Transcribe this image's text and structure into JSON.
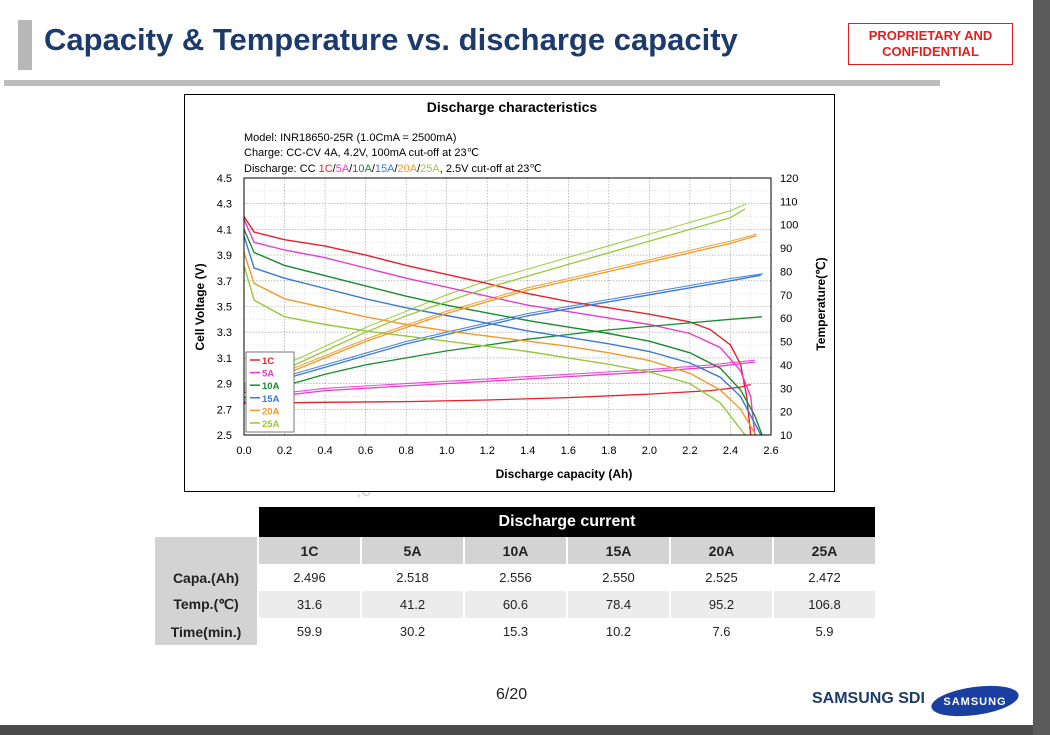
{
  "title": "Capacity & Temperature vs. discharge capacity",
  "confidential": [
    "PROPRIETARY AND",
    "CONFIDENTIAL"
  ],
  "page_number": "6/20",
  "footer_brand": "SAMSUNG SDI",
  "logo_text": "SAMSUNG",
  "watermark": "·om",
  "chart_data": {
    "type": "line",
    "title": "Discharge characteristics",
    "notes": [
      "Model: INR18650-25R (1.0CmA = 2500mA)",
      "Charge: CC-CV 4A, 4.2V, 100mA cut-off at 23℃"
    ],
    "discharge_note": {
      "prefix": "Discharge: CC ",
      "parts": [
        {
          "text": "1C",
          "color": "#e8202a"
        },
        {
          "text": "/",
          "color": "#000000"
        },
        {
          "text": "5A",
          "color": "#e83cd0"
        },
        {
          "text": "/",
          "color": "#000000"
        },
        {
          "text": "10A",
          "color": "#178c2e"
        },
        {
          "text": "/",
          "color": "#000000"
        },
        {
          "text": "15A",
          "color": "#3a78d8"
        },
        {
          "text": "/",
          "color": "#000000"
        },
        {
          "text": "20A",
          "color": "#f09a28"
        },
        {
          "text": "/",
          "color": "#000000"
        },
        {
          "text": "25A",
          "color": "#98c83a"
        }
      ],
      "suffix": ", 2.5V cut-off at 23℃"
    },
    "xlabel": "Discharge capacity (Ah)",
    "ylabel": "Cell Voltage (V)",
    "y2label": "Temperature(℃)",
    "xlim": [
      0,
      2.6
    ],
    "ylim": [
      2.5,
      4.5
    ],
    "y2lim": [
      10,
      120
    ],
    "xticks": [
      "0.0",
      "0.2",
      "0.4",
      "0.6",
      "0.8",
      "1.0",
      "1.2",
      "1.4",
      "1.6",
      "1.8",
      "2.0",
      "2.2",
      "2.4",
      "2.6"
    ],
    "yticks": [
      "2.5",
      "2.7",
      "2.9",
      "3.1",
      "3.3",
      "3.5",
      "3.7",
      "3.9",
      "4.1",
      "4.3",
      "4.5"
    ],
    "y2ticks": [
      "10",
      "20",
      "30",
      "40",
      "50",
      "60",
      "70",
      "80",
      "90",
      "100",
      "110",
      "120"
    ],
    "legend_position": "bottom-left",
    "series": [
      {
        "name": "1C",
        "color": "#e8202a",
        "voltage": [
          [
            0,
            4.2
          ],
          [
            0.05,
            4.08
          ],
          [
            0.2,
            4.02
          ],
          [
            0.4,
            3.97
          ],
          [
            0.6,
            3.9
          ],
          [
            0.8,
            3.82
          ],
          [
            1.0,
            3.75
          ],
          [
            1.2,
            3.68
          ],
          [
            1.4,
            3.6
          ],
          [
            1.6,
            3.54
          ],
          [
            1.8,
            3.49
          ],
          [
            2.0,
            3.44
          ],
          [
            2.2,
            3.38
          ],
          [
            2.3,
            3.32
          ],
          [
            2.4,
            3.2
          ],
          [
            2.45,
            3.05
          ],
          [
            2.48,
            2.8
          ],
          [
            2.5,
            2.5
          ]
        ],
        "temperature": [
          [
            0,
            23.5
          ],
          [
            0.4,
            24
          ],
          [
            0.8,
            24.3
          ],
          [
            1.2,
            25
          ],
          [
            1.6,
            26
          ],
          [
            2.0,
            27.5
          ],
          [
            2.3,
            29
          ],
          [
            2.45,
            30.5
          ],
          [
            2.5,
            31.6
          ]
        ]
      },
      {
        "name": "5A",
        "color": "#e83cd0",
        "voltage": [
          [
            0,
            4.18
          ],
          [
            0.05,
            4.0
          ],
          [
            0.2,
            3.94
          ],
          [
            0.4,
            3.88
          ],
          [
            0.6,
            3.8
          ],
          [
            0.8,
            3.72
          ],
          [
            1.0,
            3.65
          ],
          [
            1.2,
            3.58
          ],
          [
            1.4,
            3.51
          ],
          [
            1.6,
            3.46
          ],
          [
            1.8,
            3.41
          ],
          [
            2.0,
            3.36
          ],
          [
            2.2,
            3.29
          ],
          [
            2.35,
            3.18
          ],
          [
            2.45,
            3.0
          ],
          [
            2.5,
            2.8
          ],
          [
            2.52,
            2.5
          ]
        ],
        "temperature": [
          [
            0,
            24
          ],
          [
            0.2,
            27
          ],
          [
            0.4,
            29
          ],
          [
            0.8,
            31
          ],
          [
            1.2,
            33
          ],
          [
            1.6,
            35
          ],
          [
            2.0,
            37
          ],
          [
            2.3,
            39
          ],
          [
            2.52,
            41.2
          ]
        ]
      },
      {
        "name": "10A",
        "color": "#178c2e",
        "voltage": [
          [
            0,
            4.1
          ],
          [
            0.05,
            3.92
          ],
          [
            0.2,
            3.82
          ],
          [
            0.4,
            3.74
          ],
          [
            0.6,
            3.66
          ],
          [
            0.8,
            3.58
          ],
          [
            1.0,
            3.51
          ],
          [
            1.2,
            3.45
          ],
          [
            1.4,
            3.39
          ],
          [
            1.6,
            3.34
          ],
          [
            1.8,
            3.29
          ],
          [
            2.0,
            3.23
          ],
          [
            2.2,
            3.14
          ],
          [
            2.35,
            3.02
          ],
          [
            2.45,
            2.85
          ],
          [
            2.52,
            2.65
          ],
          [
            2.556,
            2.5
          ]
        ],
        "temperature": [
          [
            0,
            26
          ],
          [
            0.2,
            31
          ],
          [
            0.4,
            36
          ],
          [
            0.6,
            40
          ],
          [
            0.8,
            43
          ],
          [
            1.0,
            46
          ],
          [
            1.2,
            48.5
          ],
          [
            1.4,
            51
          ],
          [
            1.6,
            53
          ],
          [
            1.8,
            55
          ],
          [
            2.0,
            56.5
          ],
          [
            2.2,
            58
          ],
          [
            2.4,
            59.5
          ],
          [
            2.556,
            60.6
          ]
        ]
      },
      {
        "name": "15A",
        "color": "#3a78d8",
        "voltage": [
          [
            0,
            4.05
          ],
          [
            0.05,
            3.8
          ],
          [
            0.2,
            3.72
          ],
          [
            0.4,
            3.64
          ],
          [
            0.6,
            3.56
          ],
          [
            0.8,
            3.49
          ],
          [
            1.0,
            3.43
          ],
          [
            1.2,
            3.37
          ],
          [
            1.4,
            3.31
          ],
          [
            1.6,
            3.26
          ],
          [
            1.8,
            3.21
          ],
          [
            2.0,
            3.15
          ],
          [
            2.2,
            3.06
          ],
          [
            2.35,
            2.95
          ],
          [
            2.45,
            2.8
          ],
          [
            2.55,
            2.5
          ]
        ],
        "temperature": [
          [
            0,
            28
          ],
          [
            0.2,
            34
          ],
          [
            0.4,
            39
          ],
          [
            0.6,
            44
          ],
          [
            0.8,
            49
          ],
          [
            1.0,
            53
          ],
          [
            1.2,
            57
          ],
          [
            1.4,
            61
          ],
          [
            1.6,
            64
          ],
          [
            1.8,
            67
          ],
          [
            2.0,
            70
          ],
          [
            2.2,
            73
          ],
          [
            2.4,
            76
          ],
          [
            2.55,
            78.4
          ]
        ]
      },
      {
        "name": "20A",
        "color": "#f09a28",
        "voltage": [
          [
            0,
            3.92
          ],
          [
            0.05,
            3.68
          ],
          [
            0.2,
            3.56
          ],
          [
            0.4,
            3.49
          ],
          [
            0.6,
            3.42
          ],
          [
            0.8,
            3.36
          ],
          [
            1.0,
            3.31
          ],
          [
            1.2,
            3.27
          ],
          [
            1.4,
            3.23
          ],
          [
            1.6,
            3.19
          ],
          [
            1.8,
            3.14
          ],
          [
            2.0,
            3.08
          ],
          [
            2.2,
            2.98
          ],
          [
            2.35,
            2.85
          ],
          [
            2.45,
            2.7
          ],
          [
            2.525,
            2.5
          ]
        ],
        "temperature": [
          [
            0,
            29
          ],
          [
            0.2,
            36
          ],
          [
            0.4,
            43
          ],
          [
            0.6,
            50
          ],
          [
            0.8,
            56
          ],
          [
            1.0,
            62
          ],
          [
            1.2,
            67
          ],
          [
            1.4,
            72
          ],
          [
            1.6,
            76
          ],
          [
            1.8,
            80
          ],
          [
            2.0,
            84
          ],
          [
            2.2,
            88
          ],
          [
            2.4,
            92
          ],
          [
            2.525,
            95.2
          ]
        ]
      },
      {
        "name": "25A",
        "color": "#98c83a",
        "voltage": [
          [
            0,
            3.82
          ],
          [
            0.05,
            3.55
          ],
          [
            0.2,
            3.42
          ],
          [
            0.4,
            3.36
          ],
          [
            0.6,
            3.31
          ],
          [
            0.8,
            3.27
          ],
          [
            1.0,
            3.23
          ],
          [
            1.2,
            3.19
          ],
          [
            1.4,
            3.15
          ],
          [
            1.6,
            3.1
          ],
          [
            1.8,
            3.05
          ],
          [
            2.0,
            2.99
          ],
          [
            2.2,
            2.9
          ],
          [
            2.35,
            2.75
          ],
          [
            2.472,
            2.5
          ]
        ],
        "temperature": [
          [
            0,
            30
          ],
          [
            0.2,
            38
          ],
          [
            0.4,
            46
          ],
          [
            0.6,
            54
          ],
          [
            0.8,
            61
          ],
          [
            1.0,
            67
          ],
          [
            1.2,
            73
          ],
          [
            1.4,
            78
          ],
          [
            1.6,
            83
          ],
          [
            1.8,
            88
          ],
          [
            2.0,
            93
          ],
          [
            2.2,
            98
          ],
          [
            2.4,
            103
          ],
          [
            2.472,
            106.8
          ]
        ]
      }
    ],
    "temperature_bands": [
      {
        "color": "#e83cd0",
        "points": [
          [
            0,
            25
          ],
          [
            0.2,
            28
          ],
          [
            0.4,
            30
          ],
          [
            0.8,
            32
          ],
          [
            1.2,
            34
          ],
          [
            1.6,
            36
          ],
          [
            2.0,
            38
          ],
          [
            2.3,
            40
          ],
          [
            2.52,
            42
          ]
        ]
      },
      {
        "color": "#98c83a",
        "points": [
          [
            0,
            31
          ],
          [
            0.2,
            40
          ],
          [
            0.4,
            48
          ],
          [
            0.6,
            56
          ],
          [
            0.8,
            63
          ],
          [
            1.0,
            70
          ],
          [
            1.2,
            76
          ],
          [
            1.4,
            81
          ],
          [
            1.6,
            86
          ],
          [
            1.8,
            91
          ],
          [
            2.0,
            96
          ],
          [
            2.2,
            101
          ],
          [
            2.4,
            106
          ],
          [
            2.48,
            109
          ]
        ]
      },
      {
        "color": "#f09a28",
        "points": [
          [
            0,
            30
          ],
          [
            0.2,
            37
          ],
          [
            0.4,
            44
          ],
          [
            0.6,
            51
          ],
          [
            0.8,
            57
          ],
          [
            1.0,
            63
          ],
          [
            1.2,
            68
          ],
          [
            1.4,
            73
          ],
          [
            1.6,
            77
          ],
          [
            1.8,
            81
          ],
          [
            2.0,
            85
          ],
          [
            2.2,
            89
          ],
          [
            2.4,
            93
          ],
          [
            2.53,
            96
          ]
        ]
      },
      {
        "color": "#3a78d8",
        "points": [
          [
            0,
            29
          ],
          [
            0.2,
            35
          ],
          [
            0.4,
            40
          ],
          [
            0.6,
            45
          ],
          [
            0.8,
            50
          ],
          [
            1.0,
            54
          ],
          [
            1.2,
            58
          ],
          [
            1.4,
            62
          ],
          [
            1.6,
            65
          ],
          [
            1.8,
            68
          ],
          [
            2.0,
            71
          ],
          [
            2.2,
            74
          ],
          [
            2.4,
            77
          ],
          [
            2.56,
            79
          ]
        ]
      }
    ]
  },
  "table": {
    "header": "Discharge current",
    "columns": [
      "1C",
      "5A",
      "10A",
      "15A",
      "20A",
      "25A"
    ],
    "rows": [
      {
        "label": "Capa.(Ah)",
        "values": [
          "2.496",
          "2.518",
          "2.556",
          "2.550",
          "2.525",
          "2.472"
        ]
      },
      {
        "label": "Temp.(℃)",
        "values": [
          "31.6",
          "41.2",
          "60.6",
          "78.4",
          "95.2",
          "106.8"
        ]
      },
      {
        "label": "Time(min.)",
        "values": [
          "59.9",
          "30.2",
          "15.3",
          "10.2",
          "7.6",
          "5.9"
        ]
      }
    ]
  }
}
